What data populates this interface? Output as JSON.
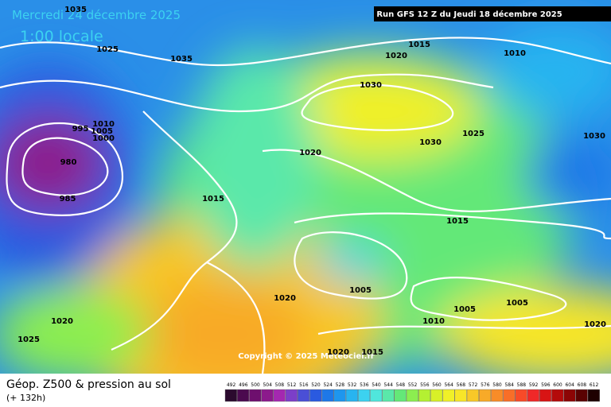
{
  "header": {
    "date": "Mercredi 24 décembre 2025",
    "time": "1:00 locale",
    "run": "Run GFS 12 Z du Jeudi 18 décembre 2025"
  },
  "copyright": "Copyright © 2025 Meteociel.fr",
  "footer": {
    "title": "Géop. Z500 & pression au sol",
    "subtitle": "(+ 132h)"
  },
  "isobar_labels": [
    "1035",
    "1025",
    "1035",
    "1020",
    "1015",
    "1010",
    "1030",
    "1010",
    "995",
    "1005",
    "1000",
    "980",
    "985",
    "1020",
    "1030",
    "1025",
    "1030",
    "1015",
    "1015",
    "1005",
    "1020",
    "1005",
    "1005",
    "1010",
    "1020",
    "1025",
    "1020",
    "1020",
    "1015"
  ],
  "legend": {
    "values": [
      "492",
      "496",
      "500",
      "504",
      "508",
      "512",
      "516",
      "520",
      "524",
      "528",
      "532",
      "536",
      "540",
      "544",
      "548",
      "552",
      "556",
      "560",
      "564",
      "568",
      "572",
      "576",
      "580",
      "584",
      "588",
      "592",
      "596",
      "600",
      "604",
      "608",
      "612"
    ],
    "colors": [
      "#2b0a2e",
      "#4b0a4f",
      "#6e0f6e",
      "#8c1a8c",
      "#a428b0",
      "#7c3fc8",
      "#4a4fd6",
      "#2a5ae0",
      "#1e78e8",
      "#1e96ee",
      "#28b4f0",
      "#3cd2f0",
      "#50e6dc",
      "#5ae8aa",
      "#64e878",
      "#8cee50",
      "#b4f032",
      "#d8f028",
      "#f0f028",
      "#f8e628",
      "#f8c828",
      "#f8aa28",
      "#f88c28",
      "#f86e28",
      "#f84a28",
      "#f02828",
      "#d81414",
      "#b40a0a",
      "#8c0505",
      "#5a0202",
      "#1e0000"
    ]
  }
}
